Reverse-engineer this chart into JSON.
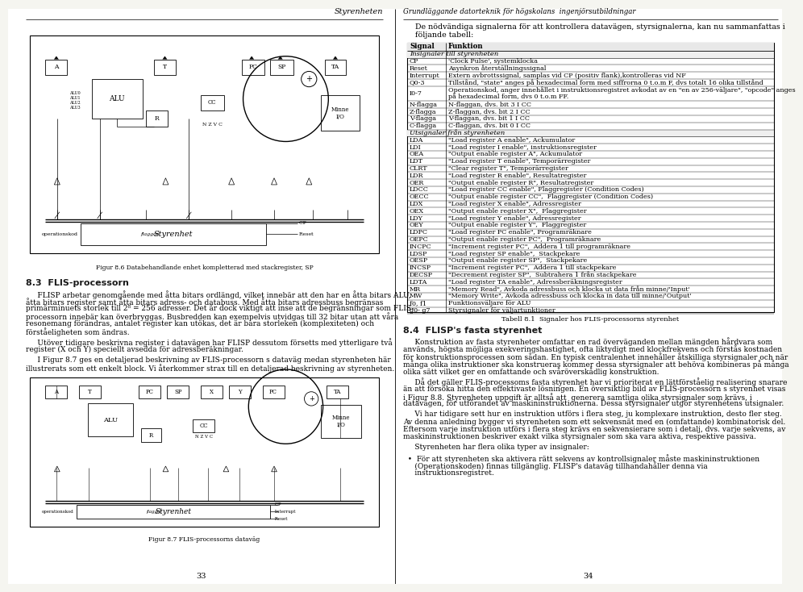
{
  "bg_color": "#f5f5f0",
  "page_bg": "#ffffff",
  "left_page": {
    "header": "Styrenheten",
    "footer": "33",
    "fig86_caption": "Figur 8.6 Databehandlande enhet kompletterad med stackregister, SP",
    "section_heading": "8.3  FLIS-processorn",
    "body_lines": [
      "     FLISP arbetar genomgående med åtta bitars ordlängd, vilket innebär att den har en åtta bitars ALU,",
      "åtta bitars register samt åtta bitars adress- och databuss. Med åtta bitars adressbuss begränsas",
      "primärminuets storlek till 2⁸ = 256 adresser. Det är dock viktigt att inse att de begränsningar som FLIS-",
      "processorn innebär kan överbryggas. Busbredden kan exempelvis utvidgas till 32 bitar utan att våra",
      "resonemang förändras, antalet register kan utökas, det är bara storleken (komplexiteten) och",
      "förståeligheten som ändras.",
      "",
      "     Utöver tidigare beskrivna register i datavägen har FLISP dessutom försetts med ytterligare två",
      "register (X och Y) speciellt avsedda för adressberäkningar.",
      "",
      "     I Figur 8.7 ges en detaljerad beskrivning av FLIS-processorn s dataväg medan styrenheten här",
      "illustrerats som ett enkelt block. Vi återkommer strax till en detaljerad beskrivning av styrenheten."
    ],
    "fig87_caption": "Figur 8.7 FLIS-processorns dataväg"
  },
  "right_page": {
    "header": "Grundläggande datorteknik för högskolans  ingenjörsutbildningar",
    "footer": "34",
    "intro_italic": "styrsignalerna",
    "intro_lines": [
      "De nödvändiga signalerna för att kontrollera datavägen, styrsignalerna, kan nu sammanfattas i",
      "följande tabell:"
    ],
    "table_title": "Tabell 8.1  Signaler hos FLIS-processorns styrenhet",
    "col1_header": "Signal",
    "col2_header": "Funktion",
    "sec1_label": "Insignaler till styrenheten",
    "rows1": [
      [
        "CP",
        "'Clock Pulse', systemklocka"
      ],
      [
        "Reset",
        "Asynkron återställningssignal"
      ],
      [
        "Interrupt",
        "Extern avbrottssignal, samplas vid CP (positiv flank),kontrolleras vid NF"
      ],
      [
        "Q0-3",
        "Tillstånd, \"state\" anges på hexadecimal form med siffrorna 0 t.o.m F, dvs totalt 16 olika tillstånd"
      ],
      [
        "I0-7",
        "Operationskod, anger innehållet i instruktionsregistret avkodat av en \"en av 256-väljare\", \"opcode\" anges\npå hexadecimal form, dvs 0 t.o.m FF."
      ],
      [
        "N-flagga",
        "N-flaggan, dvs. bit 3 I CC"
      ],
      [
        "Z-flagga",
        "Z-flaggan, dvs. bit 2 I CC"
      ],
      [
        "V-flagga",
        "V-flaggan, dvs. bit 1 I CC"
      ],
      [
        "C-flagga",
        "C-flaggan, dvs. bit 0 I CC"
      ]
    ],
    "sec2_label": "Utsignaler från styrenheten",
    "rows2": [
      [
        "LDA",
        "\"Load register A enable\", Ackumulator"
      ],
      [
        "LDI",
        "\"Load register I enable\", instruktionsregister"
      ],
      [
        "OEA",
        "\"Output enable register A\", Ackumulator"
      ],
      [
        "LDT",
        "\"Load register T enable\", Temporärregister"
      ],
      [
        "CLRT",
        "\"Clear register T\", Temporärregister"
      ],
      [
        "LDR",
        "\"Load register R enable\", Resultatregister"
      ],
      [
        "OER",
        "\"Output enable register R\", Resultatregister"
      ],
      [
        "LDCC",
        "\"Load register CC enable\", Flaggregister (Condition Codes)"
      ],
      [
        "OECC",
        "\"Output enable register CC\",  Flaggregister (Condition Codes)"
      ],
      [
        "LDX",
        "\"Load register X enable\", Adressregister"
      ],
      [
        "OEX",
        "\"Output enable register X\",  Flaggregister"
      ],
      [
        "LDY",
        "\"Load register Y enable\", Adressregister"
      ],
      [
        "OEY",
        "\"Output enable register Y\",  Flaggregister"
      ],
      [
        "LDPC",
        "\"Load register PC enable\", Programräknare"
      ],
      [
        "OEPC",
        "\"Output enable register PC\",  Programräknare"
      ],
      [
        "INCPC",
        "\"Increment register PC\",  Addera 1 till programräknare"
      ],
      [
        "LDSP",
        "\"Load register SP enable\",  Stackpekare"
      ],
      [
        "OESP",
        "\"Output enable register SP\",  Stackpekare"
      ],
      [
        "INCSP",
        "\"Increment register PC\",  Addera 1 till stackpekare"
      ],
      [
        "DECSP",
        "\"Decrement register SP\",  Subtrahera 1 från stackpekare"
      ],
      [
        "LDTA",
        "\"Load register TA enable\", Adressberäkningsregister"
      ],
      [
        "MR",
        "\"Memory Read\", Avkoda adressbuss och klocka ut data från minne/'Input'"
      ],
      [
        "MW",
        "\"Memory Write\", Avkoda adressbuss och klocka in data till minne/'Output'"
      ],
      [
        "f0, f1",
        "Funktionsväljare för ALU"
      ],
      [
        "g0- g7",
        "Styrsignaler för väljartunktioner"
      ]
    ],
    "sec84_heading": "8.4  FLISP's fasta styrenhet",
    "sec84_lines": [
      "     Konstruktion av fasta styrenheter omfattar en rad överväganden mellan mängden hårdvara som",
      "används, högsta möjliga exekveringshastighet, ofta liktydigt med klockfrekvens och förstås kostnaden",
      "för konstruktionsprocessen som sådan. En typisk centralenhet innehåller åtskilliga styrsignaler och när",
      "många olika instruktioner ska konstrueras kommer dessa styrsignaler att behöva kombineras på många",
      "olika sätt vilket ger en omfattande och svåröverskådlig konstruktion.",
      "",
      "     Då det gäller FLIS-processoms fasta styrenhet har vi prioriterat en lättförståelig realisering snarare",
      "än att försöka hitta den effektivaste lösningen. En översiktlig bild av FLIS-processorn s styrenhet visas",
      "i Figur 8.8. Styrenheten uppgift är alltså att  generera samtliga olika styrsignaler som krävs, i",
      "datavägen, för utförandet av maskininstruktionerna. Dessa styrsignaler utgör styrenhétens utsignaler.",
      "",
      "     Vi har tidigare sett hur en instruktion utförs i flera steg, ju komplexare instruktion, desto fler steg.",
      "Av denna anledning bygger vi styrenheten som ett sekvensnät med en (omfattande) kombinatorisk del.",
      "Eftersom varje instruktion utförs i flera steg krävs en sekvensierare som i detalj, dvs. varje sekvens, av",
      "maskininstruktionen beskriver exakt vilka styrsignaler som ska vara aktiva, respektive passiva.",
      "",
      "     Styrenheten har flera olika typer av insignaler:",
      "",
      "  •  För att styrenheten ska aktivera rätt sekvens av kontrollsignaler måste maskininstruktionen",
      "     (Operationskoden) finnas tillgänglig. FLISP's dataväg tillhandahåller denna via",
      "     instruktionsregistret."
    ]
  }
}
